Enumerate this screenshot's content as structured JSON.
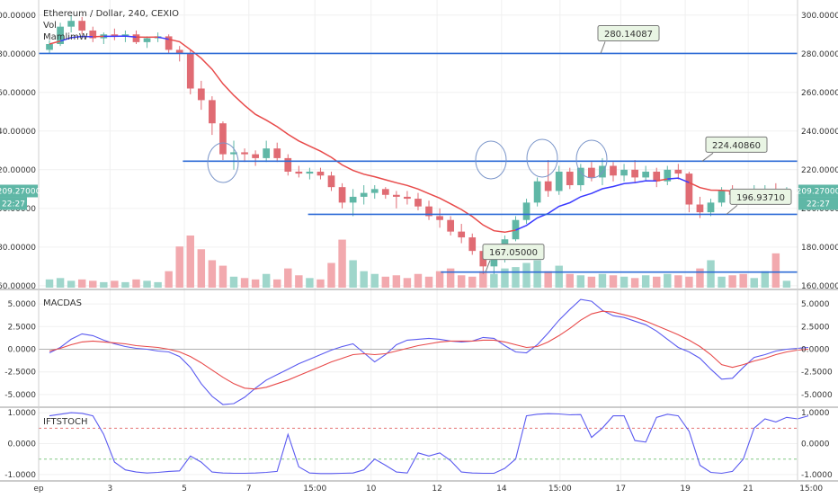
{
  "header": {
    "title": "Ethereum / Dollar, 240, CEXIO",
    "indicators": [
      "Vol",
      "MamlimW"
    ]
  },
  "colors": {
    "up": "#5fb7a6",
    "down": "#e06b73",
    "vol_up": "#9fd6cb",
    "vol_down": "#f2a9ae",
    "hline": "#2e6bd6",
    "ma_red": "#e84a4a",
    "ma_blue": "#3a3aff",
    "macd": "#5a5af0",
    "signal": "#e84a4a",
    "ift": "#5a5af0",
    "grid": "#f0f0f0"
  },
  "chart_data": [
    {
      "type": "candlestick",
      "title": "Ethereum / Dollar, 240, CEXIO",
      "ylim": [
        159,
        305
      ],
      "y_ticks": [
        {
          "v": 300,
          "label": "300.00000"
        },
        {
          "v": 280,
          "label": "280.00000"
        },
        {
          "v": 260,
          "label": "260.00000"
        },
        {
          "v": 240,
          "label": "240.00000"
        },
        {
          "v": 220,
          "label": "220.00000"
        },
        {
          "v": 200,
          "label": "200.00000"
        },
        {
          "v": 180,
          "label": "180.00000"
        },
        {
          "v": 160,
          "label": "160.00000"
        }
      ],
      "price_badge": "209.27000",
      "time_badge": "22:27",
      "levels": [
        {
          "value": 280.14087,
          "label": "280.14087",
          "x_start": 0.0
        },
        {
          "value": 224.4086,
          "label": "224.40860",
          "x_start": 0.19
        },
        {
          "value": 196.9371,
          "label": "196.93710",
          "x_start": 0.355
        },
        {
          "value": 167.05,
          "label": "167.05000",
          "x_start": 0.53
        }
      ],
      "candles": [
        [
          282,
          287,
          280,
          285
        ],
        [
          285,
          296,
          284,
          294
        ],
        [
          294,
          300,
          291,
          297
        ],
        [
          297,
          299,
          290,
          292
        ],
        [
          292,
          294,
          286,
          288
        ],
        [
          288,
          291,
          285,
          290
        ],
        [
          290,
          293,
          287,
          289
        ],
        [
          289,
          292,
          286,
          290
        ],
        [
          290,
          292,
          285,
          286
        ],
        [
          286,
          289,
          283,
          288
        ],
        [
          288,
          291,
          286,
          289
        ],
        [
          289,
          290,
          280,
          282
        ],
        [
          282,
          284,
          276,
          280
        ],
        [
          280,
          282,
          259,
          262
        ],
        [
          262,
          266,
          251,
          256
        ],
        [
          256,
          258,
          238,
          244
        ],
        [
          244,
          245,
          225,
          228
        ],
        [
          228,
          235,
          220,
          229
        ],
        [
          229,
          231,
          224,
          228
        ],
        [
          228,
          230,
          222,
          226
        ],
        [
          226,
          235,
          224,
          231
        ],
        [
          231,
          234,
          224,
          226
        ],
        [
          226,
          228,
          217,
          219
        ],
        [
          219,
          222,
          216,
          218
        ],
        [
          218,
          221,
          215,
          219
        ],
        [
          219,
          221,
          215,
          217
        ],
        [
          217,
          219,
          209,
          211
        ],
        [
          211,
          213,
          200,
          203
        ],
        [
          203,
          210,
          196,
          206
        ],
        [
          206,
          212,
          202,
          208
        ],
        [
          208,
          212,
          205,
          210
        ],
        [
          210,
          211,
          205,
          207
        ],
        [
          207,
          209,
          200,
          206
        ],
        [
          206,
          209,
          202,
          205
        ],
        [
          205,
          208,
          199,
          201
        ],
        [
          201,
          204,
          194,
          196
        ],
        [
          196,
          200,
          190,
          194
        ],
        [
          194,
          196,
          186,
          188
        ],
        [
          188,
          192,
          182,
          185
        ],
        [
          185,
          187,
          176,
          178
        ],
        [
          178,
          180,
          166,
          170
        ],
        [
          170,
          176,
          166,
          174
        ],
        [
          174,
          186,
          172,
          184
        ],
        [
          184,
          196,
          183,
          194
        ],
        [
          194,
          205,
          192,
          203
        ],
        [
          203,
          216,
          201,
          214
        ],
        [
          214,
          225,
          206,
          209
        ],
        [
          209,
          222,
          207,
          219
        ],
        [
          219,
          221,
          210,
          212
        ],
        [
          212,
          223,
          209,
          221
        ],
        [
          221,
          224,
          214,
          216
        ],
        [
          216,
          226,
          212,
          222
        ],
        [
          222,
          224,
          214,
          217
        ],
        [
          217,
          223,
          214,
          220
        ],
        [
          220,
          225,
          213,
          216
        ],
        [
          216,
          222,
          214,
          219
        ],
        [
          219,
          221,
          211,
          214
        ],
        [
          214,
          222,
          212,
          220
        ],
        [
          220,
          223,
          215,
          218
        ],
        [
          218,
          219,
          198,
          202
        ],
        [
          202,
          206,
          195,
          198
        ],
        [
          198,
          205,
          196,
          203
        ],
        [
          203,
          211,
          201,
          209
        ],
        [
          209,
          212,
          205,
          207
        ],
        [
          207,
          210,
          203,
          206
        ],
        [
          206,
          212,
          205,
          209
        ],
        [
          209,
          212,
          205,
          210
        ],
        [
          210,
          213,
          206,
          208
        ],
        [
          208,
          211,
          206,
          209
        ]
      ],
      "volumes": [
        6,
        7,
        5,
        6,
        5,
        4,
        5,
        4,
        6,
        5,
        4,
        12,
        30,
        38,
        28,
        20,
        16,
        8,
        7,
        6,
        10,
        6,
        14,
        9,
        7,
        6,
        18,
        35,
        20,
        12,
        10,
        8,
        9,
        7,
        10,
        8,
        12,
        14,
        9,
        8,
        12,
        10,
        14,
        15,
        18,
        20,
        12,
        16,
        10,
        9,
        8,
        10,
        9,
        8,
        7,
        9,
        8,
        10,
        9,
        8,
        14,
        20,
        8,
        9,
        10,
        7,
        12,
        25,
        5
      ]
    },
    {
      "type": "line",
      "title": "MACDAS",
      "ylim": [
        -6.3,
        6.3
      ],
      "y_ticks": [
        {
          "v": 5,
          "label": "5.0000"
        },
        {
          "v": 2.5,
          "label": "2.5000"
        },
        {
          "v": 0,
          "label": "0.0000"
        },
        {
          "v": -2.5,
          "label": "-2.5000"
        },
        {
          "v": -5,
          "label": "-5.0000"
        }
      ],
      "series": [
        {
          "values": [
            -0.4,
            0.2,
            1.1,
            1.7,
            1.5,
            1.0,
            0.6,
            0.3,
            0.1,
            0.0,
            -0.2,
            -0.3,
            -0.8,
            -2.0,
            -3.8,
            -5.2,
            -6.1,
            -6.0,
            -5.3,
            -4.3,
            -3.4,
            -2.8,
            -2.2,
            -1.6,
            -1.1,
            -0.6,
            -0.1,
            0.3,
            0.6,
            -0.4,
            -1.4,
            -0.6,
            0.5,
            1.0,
            1.1,
            1.2,
            1.1,
            0.9,
            0.8,
            0.9,
            1.3,
            1.2,
            0.4,
            -0.3,
            -0.4,
            0.5,
            1.8,
            3.2,
            4.4,
            5.5,
            5.3,
            4.3,
            3.7,
            3.5,
            3.1,
            2.7,
            2.0,
            1.1,
            0.2,
            -0.3,
            -1.0,
            -2.2,
            -3.3,
            -3.2,
            -2.0,
            -0.9,
            -0.6,
            -0.2,
            0.0,
            0.1,
            0.2
          ]
        },
        {
          "values": [
            -0.2,
            0.1,
            0.5,
            0.8,
            0.9,
            0.8,
            0.7,
            0.6,
            0.4,
            0.3,
            0.2,
            0.0,
            -0.3,
            -0.8,
            -1.5,
            -2.3,
            -3.1,
            -3.8,
            -4.3,
            -4.4,
            -4.2,
            -3.8,
            -3.4,
            -2.9,
            -2.4,
            -1.9,
            -1.4,
            -1.0,
            -0.6,
            -0.5,
            -0.6,
            -0.5,
            -0.2,
            0.1,
            0.4,
            0.6,
            0.8,
            0.9,
            0.9,
            0.9,
            1.0,
            1.0,
            0.8,
            0.5,
            0.2,
            0.3,
            0.8,
            1.5,
            2.3,
            3.2,
            3.9,
            4.2,
            4.1,
            3.8,
            3.5,
            3.1,
            2.6,
            2.1,
            1.6,
            1.0,
            0.3,
            -0.6,
            -1.7,
            -2.0,
            -1.7,
            -1.3,
            -1.0,
            -0.6,
            -0.3,
            -0.1,
            0.0
          ]
        }
      ]
    },
    {
      "type": "line",
      "title": "IFTSTOCH",
      "ylim": [
        -1.12,
        1.12
      ],
      "y_ticks": [
        {
          "v": 1,
          "label": "1.0000"
        },
        {
          "v": 0,
          "label": "0.0000"
        },
        {
          "v": -1,
          "label": "-1.0000"
        }
      ],
      "levels": [
        0.5,
        -0.5
      ],
      "series": [
        {
          "values": [
            0.9,
            0.95,
            1.0,
            0.98,
            0.9,
            0.3,
            -0.6,
            -0.85,
            -0.92,
            -0.95,
            -0.93,
            -0.9,
            -0.88,
            -0.4,
            -0.6,
            -0.92,
            -0.95,
            -0.96,
            -0.96,
            -0.95,
            -0.93,
            -0.9,
            0.3,
            -0.75,
            -0.95,
            -0.97,
            -0.97,
            -0.96,
            -0.95,
            -0.85,
            -0.5,
            -0.7,
            -0.92,
            -0.95,
            -0.3,
            -0.4,
            -0.3,
            -0.55,
            -0.92,
            -0.95,
            -0.96,
            -0.96,
            -0.8,
            -0.5,
            0.9,
            0.95,
            0.97,
            0.96,
            0.93,
            0.94,
            0.2,
            0.5,
            0.9,
            0.9,
            0.1,
            0.05,
            0.85,
            0.95,
            0.9,
            0.4,
            -0.7,
            -0.93,
            -0.96,
            -0.9,
            -0.5,
            0.5,
            0.8,
            0.7,
            0.85,
            0.8,
            0.9
          ]
        }
      ]
    }
  ],
  "x_axis": {
    "ticks": [
      {
        "pos": 0.0,
        "label": "ep"
      },
      {
        "pos": 0.094,
        "label": "3"
      },
      {
        "pos": 0.192,
        "label": "5"
      },
      {
        "pos": 0.277,
        "label": "7"
      },
      {
        "pos": 0.364,
        "label": "15:00"
      },
      {
        "pos": 0.438,
        "label": "10"
      },
      {
        "pos": 0.525,
        "label": "12"
      },
      {
        "pos": 0.61,
        "label": "14"
      },
      {
        "pos": 0.687,
        "label": "15:00"
      },
      {
        "pos": 0.767,
        "label": "17"
      },
      {
        "pos": 0.852,
        "label": "19"
      },
      {
        "pos": 0.935,
        "label": "21"
      },
      {
        "pos": 1.018,
        "label": "15:00"
      }
    ]
  }
}
